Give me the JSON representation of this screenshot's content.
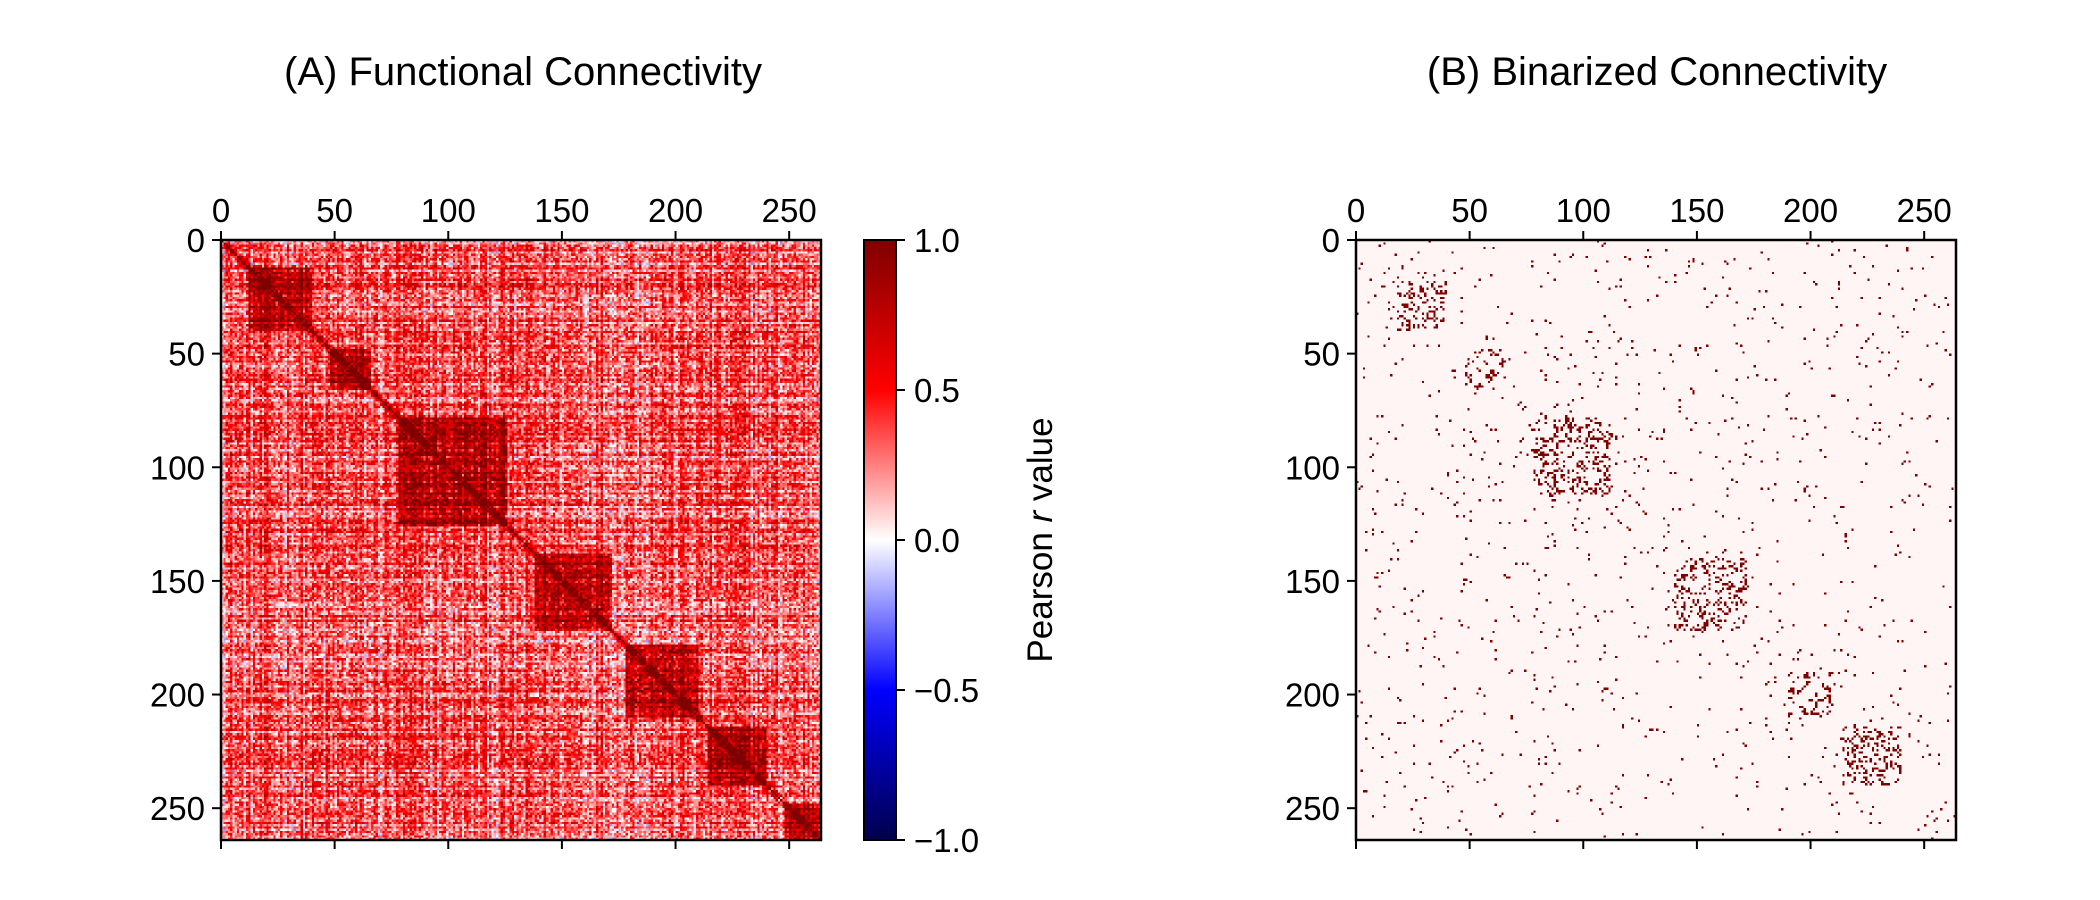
{
  "chart_data": [
    {
      "type": "heatmap",
      "title": "(A) Functional Connectivity",
      "matrix_size": 264,
      "x_ticks": [
        "0",
        "50",
        "100",
        "150",
        "200",
        "250"
      ],
      "x_tick_values": [
        0,
        50,
        100,
        150,
        200,
        250
      ],
      "y_ticks": [
        "0",
        "50",
        "100",
        "150",
        "200",
        "250"
      ],
      "y_tick_values": [
        0,
        50,
        100,
        150,
        200,
        250
      ],
      "x_axis_position": "top",
      "xlim": [
        0,
        264
      ],
      "ylim": [
        264,
        0
      ],
      "colormap": "seismic",
      "colormap_stops": [
        "#00004c",
        "#0000ff",
        "#ffffff",
        "#ff0000",
        "#7f0000"
      ],
      "diagonal_value": 1.0,
      "modules": [
        [
          12,
          40
        ],
        [
          48,
          66
        ],
        [
          78,
          126
        ],
        [
          138,
          172
        ],
        [
          178,
          210
        ],
        [
          214,
          240
        ],
        [
          248,
          264
        ]
      ],
      "colorbar": {
        "label_prefix": "Pearson ",
        "label_italic": "r",
        "label_suffix": " value",
        "ticks": [
          "1.0",
          "0.5",
          "0.0",
          "−0.5",
          "−1.0"
        ],
        "tick_values": [
          1.0,
          0.5,
          0.0,
          -0.5,
          -1.0
        ],
        "range": [
          -1.0,
          1.0
        ]
      }
    },
    {
      "type": "heatmap",
      "title": "(B) Binarized Connectivity",
      "matrix_size": 264,
      "x_ticks": [
        "0",
        "50",
        "100",
        "150",
        "200",
        "250"
      ],
      "x_tick_values": [
        0,
        50,
        100,
        150,
        200,
        250
      ],
      "y_ticks": [
        "0",
        "50",
        "100",
        "150",
        "200",
        "250"
      ],
      "y_tick_values": [
        0,
        50,
        100,
        150,
        200,
        250
      ],
      "x_axis_position": "top",
      "xlim": [
        0,
        264
      ],
      "ylim": [
        264,
        0
      ],
      "binary_colors": {
        "off": "#fff5f5",
        "on": "#7f0000"
      },
      "modules": [
        [
          18,
          40
        ],
        [
          48,
          66
        ],
        [
          78,
          112
        ],
        [
          140,
          172
        ],
        [
          190,
          210
        ],
        [
          214,
          240
        ]
      ]
    }
  ]
}
